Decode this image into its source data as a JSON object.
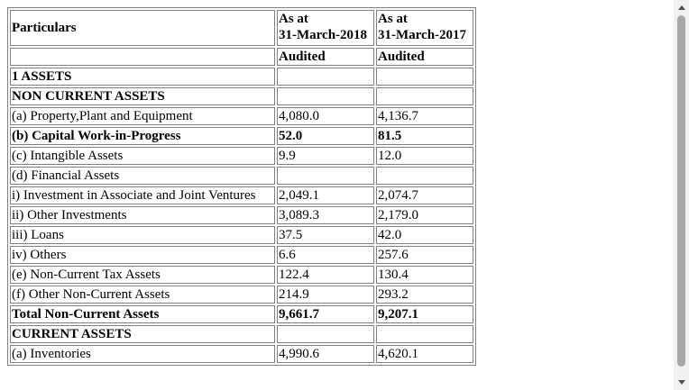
{
  "table": {
    "header": {
      "particulars": "Particulars",
      "col1_line1": "As at",
      "col1_line2": "31-March-2018",
      "col2_line1": "As at",
      "col2_line2": "31-March-2017",
      "col1_status": "Audited",
      "col2_status": "Audited"
    },
    "rows": [
      {
        "label": "1 ASSETS",
        "v2018": "",
        "v2017": "",
        "bold": true
      },
      {
        "label": "NON CURRENT ASSETS",
        "v2018": "",
        "v2017": "",
        "bold": true
      },
      {
        "label": "(a) Property,Plant and Equipment",
        "v2018": "4,080.0",
        "v2017": "4,136.7",
        "bold": false
      },
      {
        "label": "(b) Capital Work-in-Progress",
        "v2018": "52.0",
        "v2017": "81.5",
        "bold": true
      },
      {
        "label": "(c) Intangible Assets",
        "v2018": "9.9",
        "v2017": "12.0",
        "bold": false
      },
      {
        "label": "(d) Financial Assets",
        "v2018": "",
        "v2017": "",
        "bold": false
      },
      {
        "label": "i) Investment in Associate and Joint Ventures",
        "v2018": "2,049.1",
        "v2017": "2,074.7",
        "bold": false
      },
      {
        "label": "ii) Other Investments",
        "v2018": "3,089.3",
        "v2017": "2,179.0",
        "bold": false
      },
      {
        "label": "iii) Loans",
        "v2018": "37.5",
        "v2017": "42.0",
        "bold": false
      },
      {
        "label": "iv) Others",
        "v2018": "6.6",
        "v2017": "257.6",
        "bold": false
      },
      {
        "label": "(e) Non-Current Tax Assets",
        "v2018": "122.4",
        "v2017": "130.4",
        "bold": false
      },
      {
        "label": "(f) Other Non-Current Assets",
        "v2018": "214.9",
        "v2017": "293.2",
        "bold": false
      },
      {
        "label": "Total Non-Current Assets",
        "v2018": "9,661.7",
        "v2017": "9,207.1",
        "bold": true
      },
      {
        "label": "CURRENT ASSETS",
        "v2018": "",
        "v2017": "",
        "bold": true
      },
      {
        "label": "(a) Inventories",
        "v2018": "4,990.6",
        "v2017": "4,620.1",
        "bold": false
      }
    ]
  },
  "scrollbar": {
    "up_icon": "triangle-up-icon",
    "down_icon": "triangle-down-icon"
  }
}
